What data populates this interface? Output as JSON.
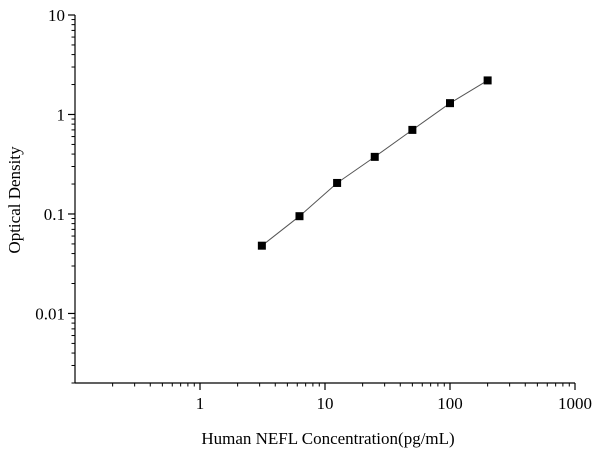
{
  "chart_data": {
    "type": "scatter",
    "title": "",
    "xlabel": "Human NEFL Concentration(pg/mL)",
    "ylabel": "Optical Density",
    "x_scale": "log",
    "y_scale": "log",
    "xlim": [
      0.1,
      1000
    ],
    "ylim": [
      0.002,
      10
    ],
    "x_ticks": [
      {
        "value": 1,
        "label": "1"
      },
      {
        "value": 10,
        "label": "10"
      },
      {
        "value": 100,
        "label": "100"
      },
      {
        "value": 1000,
        "label": "1000"
      }
    ],
    "y_ticks": [
      {
        "value": 0.01,
        "label": "0.01"
      },
      {
        "value": 0.1,
        "label": "0.1"
      },
      {
        "value": 1,
        "label": "1"
      },
      {
        "value": 10,
        "label": "10"
      }
    ],
    "grid": false,
    "legend": "none",
    "series": [
      {
        "x": [
          3.125,
          6.25,
          12.5,
          25,
          50,
          100,
          200
        ],
        "y": [
          0.048,
          0.095,
          0.205,
          0.375,
          0.7,
          1.3,
          2.2
        ],
        "marker": "square",
        "fit_line": true,
        "color": "#000000"
      }
    ]
  }
}
